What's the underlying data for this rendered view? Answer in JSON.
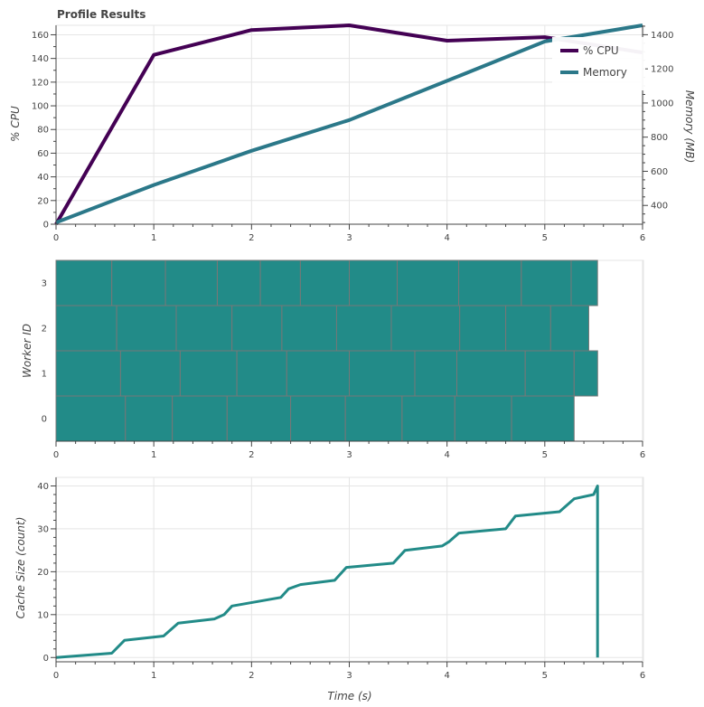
{
  "title": "Profile Results",
  "chart_data": [
    {
      "type": "line",
      "ylabel": "% CPU",
      "y2label": "Memory (MB)",
      "xlim": [
        0,
        6
      ],
      "ylim": [
        0,
        168
      ],
      "y2lim": [
        290,
        1455
      ],
      "x_ticks": [
        0,
        1,
        2,
        3,
        4,
        5,
        6
      ],
      "y_ticks": [
        0,
        20,
        40,
        60,
        80,
        100,
        120,
        140,
        160
      ],
      "y2_ticks": [
        400,
        600,
        800,
        1000,
        1200,
        1400
      ],
      "legend_position": "top-right",
      "series": [
        {
          "name": "% CPU",
          "axis": "left",
          "color": "#440154",
          "x": [
            0,
            1,
            2,
            3,
            4,
            5,
            6
          ],
          "y": [
            0,
            143,
            164,
            168,
            155,
            158,
            145
          ]
        },
        {
          "name": "Memory",
          "axis": "right",
          "color": "#2b7889",
          "x": [
            0,
            1,
            2,
            3,
            4,
            5,
            6
          ],
          "y": [
            300,
            520,
            720,
            900,
            1130,
            1360,
            1455
          ]
        }
      ]
    },
    {
      "type": "gantt",
      "ylabel": "Worker ID",
      "xlim": [
        0,
        6
      ],
      "x_ticks": [
        0,
        1,
        2,
        3,
        4,
        5,
        6
      ],
      "y_ticks": [
        0,
        1,
        2,
        3
      ],
      "bar_color": "#228b88",
      "workers": [
        {
          "id": 0,
          "boundaries": [
            0,
            0.71,
            1.19,
            1.75,
            2.4,
            2.96,
            3.54,
            4.08,
            4.66,
            5.3
          ]
        },
        {
          "id": 1,
          "boundaries": [
            0,
            0.66,
            1.27,
            1.85,
            2.36,
            3.0,
            3.67,
            4.1,
            4.8,
            5.3,
            5.54
          ]
        },
        {
          "id": 2,
          "boundaries": [
            0,
            0.62,
            1.23,
            1.8,
            2.31,
            2.87,
            3.43,
            4.13,
            4.6,
            5.06,
            5.45
          ]
        },
        {
          "id": 3,
          "boundaries": [
            0,
            0.57,
            1.12,
            1.65,
            2.09,
            2.5,
            3.0,
            3.49,
            4.12,
            4.76,
            5.27,
            5.54
          ]
        }
      ]
    },
    {
      "type": "line",
      "ylabel": "Cache Size (count)",
      "xlabel": "Time (s)",
      "xlim": [
        0,
        6
      ],
      "ylim": [
        -1,
        42
      ],
      "x_ticks": [
        0,
        1,
        2,
        3,
        4,
        5,
        6
      ],
      "y_ticks": [
        0,
        10,
        20,
        30,
        40
      ],
      "series": [
        {
          "color": "#228b88",
          "x": [
            0,
            0.57,
            0.7,
            1.1,
            1.15,
            1.25,
            1.62,
            1.72,
            1.8,
            2.3,
            2.38,
            2.5,
            2.85,
            2.97,
            3.45,
            3.57,
            3.95,
            4.02,
            4.12,
            4.6,
            4.7,
            5.15,
            5.2,
            5.3,
            5.5,
            5.54,
            5.54,
            5.54
          ],
          "y": [
            0,
            1,
            4,
            5,
            6,
            8,
            9,
            10,
            12,
            14,
            16,
            17,
            18,
            21,
            22,
            25,
            26,
            27,
            29,
            30,
            33,
            34,
            35,
            37,
            38,
            40,
            40,
            0
          ]
        }
      ]
    }
  ]
}
